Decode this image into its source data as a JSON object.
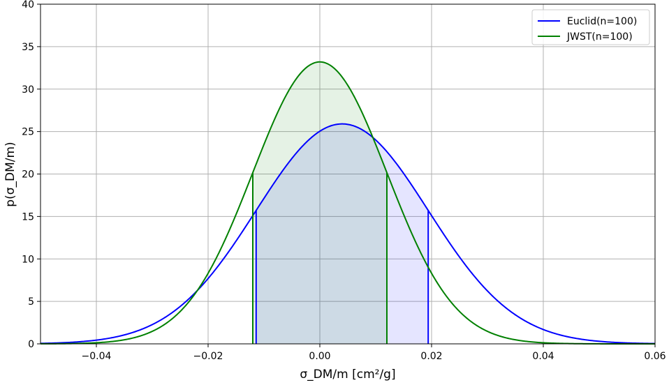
{
  "chart_data": {
    "type": "line",
    "title": "",
    "xlabel": "σ_DM/m [cm²/g]",
    "ylabel": "p(σ_DM/m)",
    "xlim": [
      -0.05,
      0.06
    ],
    "ylim": [
      0,
      40
    ],
    "xticks": [
      -0.04,
      -0.02,
      0.0,
      0.02,
      0.04,
      0.06
    ],
    "xtick_labels": [
      "−0.04",
      "−0.02",
      "0.00",
      "0.02",
      "0.04",
      "0.06"
    ],
    "yticks": [
      0,
      5,
      10,
      15,
      20,
      25,
      30,
      35,
      40
    ],
    "ytick_labels": [
      "0",
      "5",
      "10",
      "15",
      "20",
      "25",
      "30",
      "35",
      "40"
    ],
    "grid": true,
    "legend_position": "top-right",
    "series": [
      {
        "name": "Euclid(n=100)",
        "color": "#0000ff",
        "fill": "#e6e6ff",
        "shape": "gaussian",
        "peak_x": 0.004,
        "peak_y": 25.9,
        "shaded_interval": [
          -0.0114,
          0.0194
        ]
      },
      {
        "name": "JWST(n=100)",
        "color": "#008000",
        "fill": "#e5f2e5",
        "shape": "gaussian",
        "peak_x": 0.0,
        "peak_y": 33.2,
        "shaded_interval": [
          -0.012,
          0.012
        ]
      }
    ]
  }
}
